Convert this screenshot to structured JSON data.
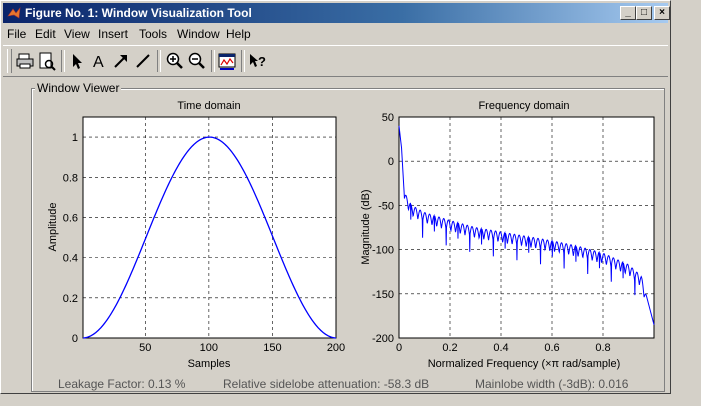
{
  "window": {
    "title": "Figure No. 1: Window Visualization Tool"
  },
  "menu": [
    "File",
    "Edit",
    "View",
    "Insert",
    "Tools",
    "Window",
    "Help"
  ],
  "panel": {
    "title": "Window Viewer"
  },
  "status": {
    "leakage": "Leakage Factor: 0.13 %",
    "sidelobe": "Relative sidelobe attenuation: -58.3 dB",
    "mainlobe": "Mainlobe width (-3dB): 0.016"
  },
  "icons": [
    "print-icon",
    "print-preview-icon",
    "select-arrow-icon",
    "text-icon",
    "arrow-icon",
    "line-icon",
    "zoom-in-icon",
    "zoom-out-icon",
    "window-designer-icon",
    "help-icon"
  ],
  "chart_data": [
    {
      "type": "line",
      "title": "Time domain",
      "xlabel": "Samples",
      "ylabel": "Amplitude",
      "xlim": [
        1,
        200
      ],
      "ylim": [
        0,
        1.1
      ],
      "xticks": [
        50,
        100,
        150,
        200
      ],
      "yticks": [
        0,
        0.2,
        0.4,
        0.6,
        0.8,
        1
      ],
      "ytick_labels": [
        "0",
        "0.2",
        "0.4",
        "0.6",
        "0.8",
        "1"
      ],
      "grid": true,
      "color": "#0000ff",
      "series": [
        {
          "function": "hann",
          "length": 200
        }
      ]
    },
    {
      "type": "line",
      "title": "Frequency domain",
      "xlabel": "Normalized Frequency  (×π rad/sample)",
      "ylabel": "Magnitude (dB)",
      "xlim": [
        0,
        1
      ],
      "ylim": [
        -200,
        50
      ],
      "xticks": [
        0,
        0.2,
        0.4,
        0.6,
        0.8
      ],
      "yticks": [
        -200,
        -150,
        -100,
        -50,
        0,
        50
      ],
      "grid": true,
      "color": "#0000ff",
      "series": [
        {
          "x": [
            0,
            0.01,
            0.02,
            0.05,
            0.1,
            0.2,
            0.3,
            0.4,
            0.5,
            0.6,
            0.7,
            0.8,
            0.9,
            0.95,
            1.0
          ],
          "y": [
            40,
            15,
            -35,
            -50,
            -58,
            -67,
            -75,
            -80,
            -85,
            -90,
            -96,
            -104,
            -117,
            -130,
            -185
          ]
        }
      ]
    }
  ]
}
